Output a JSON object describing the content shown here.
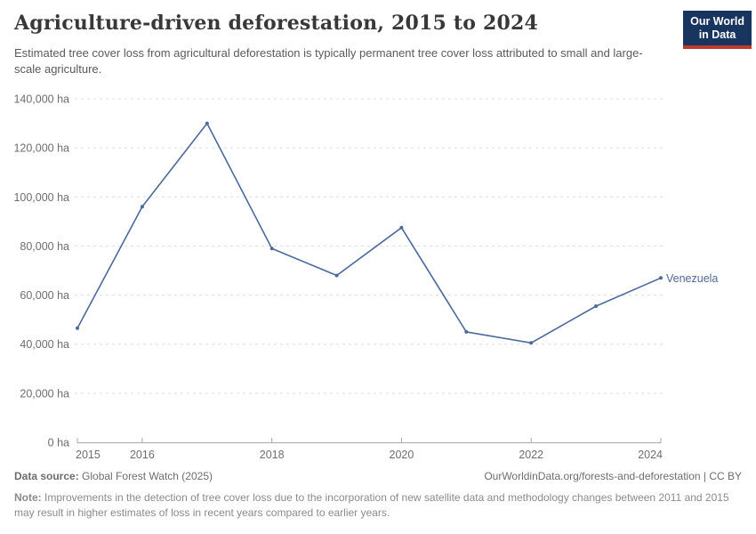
{
  "header": {
    "title": "Agriculture-driven deforestation, 2015 to 2024",
    "subtitle": "Estimated tree cover loss from agricultural deforestation is typically permanent tree cover loss attributed to small and large-scale agriculture.",
    "logo_line1": "Our World",
    "logo_line2": "in Data"
  },
  "chart_data": {
    "type": "line",
    "title": "Agriculture-driven deforestation, 2015 to 2024",
    "x": [
      2015,
      2016,
      2017,
      2018,
      2019,
      2020,
      2021,
      2022,
      2023,
      2024
    ],
    "series": [
      {
        "name": "Venezuela",
        "values": [
          46500,
          96000,
          130000,
          79000,
          68000,
          87500,
          45000,
          40500,
          55500,
          67000
        ],
        "color": "#4C6A9C"
      }
    ],
    "unit": "ha",
    "ylim": [
      0,
      140000
    ],
    "yticks": [
      {
        "value": 0,
        "label": "0 ha"
      },
      {
        "value": 20000,
        "label": "20,000 ha"
      },
      {
        "value": 40000,
        "label": "40,000 ha"
      },
      {
        "value": 60000,
        "label": "60,000 ha"
      },
      {
        "value": 80000,
        "label": "80,000 ha"
      },
      {
        "value": 100000,
        "label": "100,000 ha"
      },
      {
        "value": 120000,
        "label": "120,000 ha"
      },
      {
        "value": 140000,
        "label": "140,000 ha"
      }
    ],
    "xticks": [
      {
        "value": 2015,
        "label": "2015"
      },
      {
        "value": 2016,
        "label": "2016"
      },
      {
        "value": 2018,
        "label": "2018"
      },
      {
        "value": 2020,
        "label": "2020"
      },
      {
        "value": 2022,
        "label": "2022"
      },
      {
        "value": 2024,
        "label": "2024"
      }
    ],
    "grid": "horizontal-dashed",
    "legend_position": "end-of-line"
  },
  "colors": {
    "line": "#4C6A9C",
    "grid": "#dcdcdc",
    "axis": "#a8a8a8",
    "logo_bg": "#183560",
    "logo_stripe": "#c0392b"
  },
  "footer": {
    "datasource_label": "Data source:",
    "datasource_value": " Global Forest Watch (2025)",
    "link": "OurWorldinData.org/forests-and-deforestation | CC BY",
    "note_label": "Note:",
    "note_value": " Improvements in the detection of tree cover loss due to the incorporation of new satellite data and methodology changes between 2011 and 2015 may result in higher estimates of loss in recent years compared to earlier years."
  }
}
